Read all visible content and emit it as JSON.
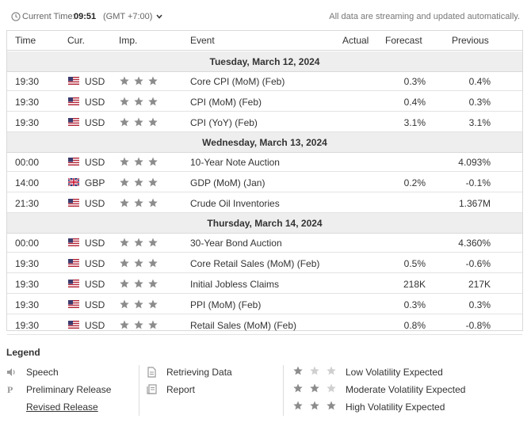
{
  "topbar": {
    "current_time_label": "Current Time:",
    "current_time_value": "09:51",
    "timezone": "(GMT +7:00)",
    "notice": "All data are streaming and updated automatically."
  },
  "columns": {
    "time": "Time",
    "cur": "Cur.",
    "imp": "Imp.",
    "event": "Event",
    "actual": "Actual",
    "forecast": "Forecast",
    "previous": "Previous"
  },
  "days": [
    {
      "date": "Tuesday, March 12, 2024",
      "events": [
        {
          "time": "19:30",
          "flag": "us-flag-icon",
          "cur": "USD",
          "importance": 3,
          "event": "Core CPI (MoM) (Feb)",
          "actual": "",
          "forecast": "0.3%",
          "previous": "0.4%"
        },
        {
          "time": "19:30",
          "flag": "us-flag-icon",
          "cur": "USD",
          "importance": 3,
          "event": "CPI (MoM) (Feb)",
          "actual": "",
          "forecast": "0.4%",
          "previous": "0.3%"
        },
        {
          "time": "19:30",
          "flag": "us-flag-icon",
          "cur": "USD",
          "importance": 3,
          "event": "CPI (YoY) (Feb)",
          "actual": "",
          "forecast": "3.1%",
          "previous": "3.1%"
        }
      ]
    },
    {
      "date": "Wednesday, March 13, 2024",
      "events": [
        {
          "time": "00:00",
          "flag": "us-flag-icon",
          "cur": "USD",
          "importance": 3,
          "event": "10-Year Note Auction",
          "actual": "",
          "forecast": "",
          "previous": "4.093%"
        },
        {
          "time": "14:00",
          "flag": "uk-flag-icon",
          "cur": "GBP",
          "importance": 3,
          "event": "GDP (MoM) (Jan)",
          "actual": "",
          "forecast": "0.2%",
          "previous": "-0.1%"
        },
        {
          "time": "21:30",
          "flag": "us-flag-icon",
          "cur": "USD",
          "importance": 3,
          "event": "Crude Oil Inventories",
          "actual": "",
          "forecast": "",
          "previous": "1.367M"
        }
      ]
    },
    {
      "date": "Thursday, March 14, 2024",
      "events": [
        {
          "time": "00:00",
          "flag": "us-flag-icon",
          "cur": "USD",
          "importance": 3,
          "event": "30-Year Bond Auction",
          "actual": "",
          "forecast": "",
          "previous": "4.360%"
        },
        {
          "time": "19:30",
          "flag": "us-flag-icon",
          "cur": "USD",
          "importance": 3,
          "event": "Core Retail Sales (MoM) (Feb)",
          "actual": "",
          "forecast": "0.5%",
          "previous": "-0.6%"
        },
        {
          "time": "19:30",
          "flag": "us-flag-icon",
          "cur": "USD",
          "importance": 3,
          "event": "Initial Jobless Claims",
          "actual": "",
          "forecast": "218K",
          "previous": "217K"
        },
        {
          "time": "19:30",
          "flag": "us-flag-icon",
          "cur": "USD",
          "importance": 3,
          "event": "PPI (MoM) (Feb)",
          "actual": "",
          "forecast": "0.3%",
          "previous": "0.3%"
        },
        {
          "time": "19:30",
          "flag": "us-flag-icon",
          "cur": "USD",
          "importance": 3,
          "event": "Retail Sales (MoM) (Feb)",
          "actual": "",
          "forecast": "0.8%",
          "previous": "-0.8%"
        }
      ]
    }
  ],
  "legend": {
    "title": "Legend",
    "speech": "Speech",
    "preliminary": "Preliminary Release",
    "preliminary_glyph": "P",
    "revised": "Revised Release",
    "retrieving": "Retrieving Data",
    "report": "Report",
    "low": "Low Volatility Expected",
    "moderate": "Moderate Volatility Expected",
    "high": "High Volatility Expected"
  },
  "colors": {
    "star_filled": "#8c8c8c",
    "star_empty": "#cfcfcf",
    "date_row_bg": "#eeeeee",
    "border": "#d9d9d9"
  }
}
